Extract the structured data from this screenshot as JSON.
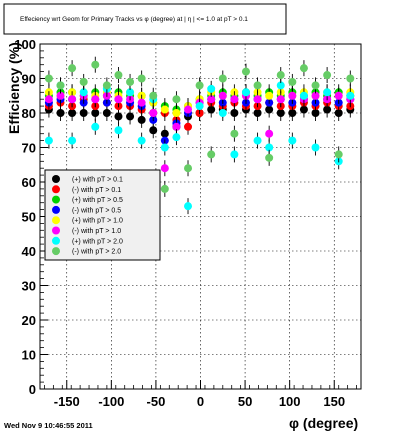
{
  "title": "Effeciency wrt Geom for Primary Tracks vs φ (degree) at | η | <= 1.0 at pT > 0.1",
  "footer_timestamp": "Wed Nov  9 10:46:55 2011",
  "chart_data": {
    "type": "scatter",
    "title": "Effeciency wrt Geom for Primary Tracks vs φ (degree) at | η | <= 1.0 at pT > 0.1",
    "xlabel": "φ (degree)",
    "ylabel": "Efficiency (%)",
    "xlim": [
      -180,
      180
    ],
    "ylim": [
      0,
      100
    ],
    "x_ticks": [
      -150,
      -100,
      -50,
      0,
      50,
      100,
      150
    ],
    "y_ticks": [
      0,
      10,
      20,
      30,
      40,
      50,
      60,
      70,
      80,
      90,
      100
    ],
    "grid": true,
    "legend_position": "middle-left",
    "series": [
      {
        "name": "(+) with pT > 0.1",
        "color": "#000000",
        "x": [
          -170,
          -157,
          -144,
          -131,
          -118,
          -105,
          -92,
          -79,
          -66,
          -53,
          -40,
          -27,
          -14,
          -1,
          12,
          25,
          38,
          51,
          64,
          77,
          90,
          103,
          116,
          129,
          142,
          155,
          168
        ],
        "y": [
          81,
          80,
          80,
          80,
          80,
          80,
          79,
          79,
          78,
          75,
          74,
          76,
          79,
          80,
          81,
          81,
          80,
          81,
          80,
          81,
          80,
          80,
          81,
          80,
          81,
          80,
          81
        ]
      },
      {
        "name": "(-) with pT > 0.1",
        "color": "#ff0000",
        "x": [
          -170,
          -157,
          -144,
          -131,
          -118,
          -105,
          -92,
          -79,
          -66,
          -53,
          -40,
          -27,
          -14,
          -1,
          12,
          25,
          38,
          51,
          64,
          77,
          90,
          103,
          116,
          129,
          142,
          155,
          168
        ],
        "y": [
          82,
          83,
          82,
          84,
          82,
          83,
          82,
          82,
          81,
          80,
          80,
          78,
          76,
          80,
          83,
          82,
          83,
          82,
          82,
          83,
          82,
          82,
          83,
          82,
          83,
          82,
          82
        ]
      },
      {
        "name": "(+) with pT > 0.5",
        "color": "#00d000",
        "x": [
          -170,
          -157,
          -144,
          -131,
          -118,
          -105,
          -92,
          -79,
          -66,
          -53,
          -40,
          -27,
          -14,
          -1,
          12,
          25,
          38,
          51,
          64,
          77,
          90,
          103,
          116,
          129,
          142,
          155,
          168
        ],
        "y": [
          85,
          86,
          86,
          85,
          86,
          85,
          86,
          85,
          85,
          83,
          82,
          81,
          82,
          84,
          85,
          86,
          85,
          86,
          85,
          86,
          85,
          86,
          85,
          86,
          85,
          86,
          85
        ]
      },
      {
        "name": "(-) with pT > 0.5",
        "color": "#0000ff",
        "x": [
          -170,
          -157,
          -144,
          -131,
          -118,
          -105,
          -92,
          -79,
          -66,
          -53,
          -40,
          -27,
          -14,
          -1,
          12,
          25,
          38,
          51,
          64,
          77,
          90,
          103,
          116,
          129,
          142,
          155,
          168
        ],
        "y": [
          83,
          84,
          84,
          83,
          84,
          83,
          84,
          83,
          82,
          78,
          72,
          77,
          80,
          83,
          84,
          83,
          84,
          83,
          84,
          83,
          84,
          83,
          84,
          83,
          84,
          83,
          84
        ]
      },
      {
        "name": "(+) with pT > 1.0",
        "color": "#ffff00",
        "x": [
          -170,
          -157,
          -144,
          -131,
          -118,
          -105,
          -92,
          -79,
          -66,
          -53,
          -40,
          -27,
          -14,
          -1,
          12,
          25,
          38,
          51,
          64,
          77,
          90,
          103,
          116,
          129,
          142,
          155,
          168
        ],
        "y": [
          86,
          85,
          86,
          86,
          85,
          86,
          85,
          86,
          85,
          83,
          81,
          80,
          82,
          84,
          86,
          85,
          86,
          85,
          86,
          85,
          86,
          85,
          86,
          85,
          86,
          85,
          86
        ]
      },
      {
        "name": "(-) with pT > 1.0",
        "color": "#ff00ff",
        "x": [
          -170,
          -157,
          -144,
          -131,
          -118,
          -105,
          -92,
          -79,
          -66,
          -53,
          -40,
          -27,
          -14,
          -1,
          12,
          25,
          38,
          51,
          64,
          77,
          90,
          103,
          116,
          129,
          142,
          155,
          168
        ],
        "y": [
          84,
          85,
          84,
          85,
          84,
          85,
          84,
          84,
          83,
          80,
          64,
          76,
          81,
          83,
          84,
          85,
          84,
          85,
          84,
          74,
          84,
          85,
          84,
          85,
          84,
          85,
          84
        ]
      },
      {
        "name": "(+) with pT > 2.0",
        "color": "#00ffff",
        "x": [
          -170,
          -157,
          -144,
          -131,
          -118,
          -105,
          -92,
          -79,
          -66,
          -53,
          -40,
          -27,
          -14,
          -1,
          12,
          25,
          38,
          51,
          64,
          77,
          90,
          103,
          116,
          129,
          142,
          155,
          168
        ],
        "y": [
          72,
          88,
          72,
          86,
          76,
          87,
          75,
          86,
          72,
          84,
          70,
          73,
          53,
          82,
          87,
          80,
          68,
          86,
          72,
          70,
          88,
          72,
          85,
          70,
          86,
          66,
          85
        ]
      },
      {
        "name": "(-) with pT > 2.0",
        "color": "#66cc66",
        "x": [
          -170,
          -157,
          -144,
          -131,
          -118,
          -105,
          -92,
          -79,
          -66,
          -53,
          -40,
          -27,
          -14,
          -1,
          12,
          25,
          38,
          51,
          64,
          77,
          90,
          103,
          116,
          129,
          142,
          155,
          168
        ],
        "y": [
          90,
          88,
          93,
          89,
          94,
          88,
          91,
          89,
          90,
          85,
          58,
          84,
          64,
          88,
          68,
          90,
          74,
          92,
          88,
          67,
          91,
          89,
          93,
          88,
          91,
          68,
          90
        ]
      }
    ]
  }
}
